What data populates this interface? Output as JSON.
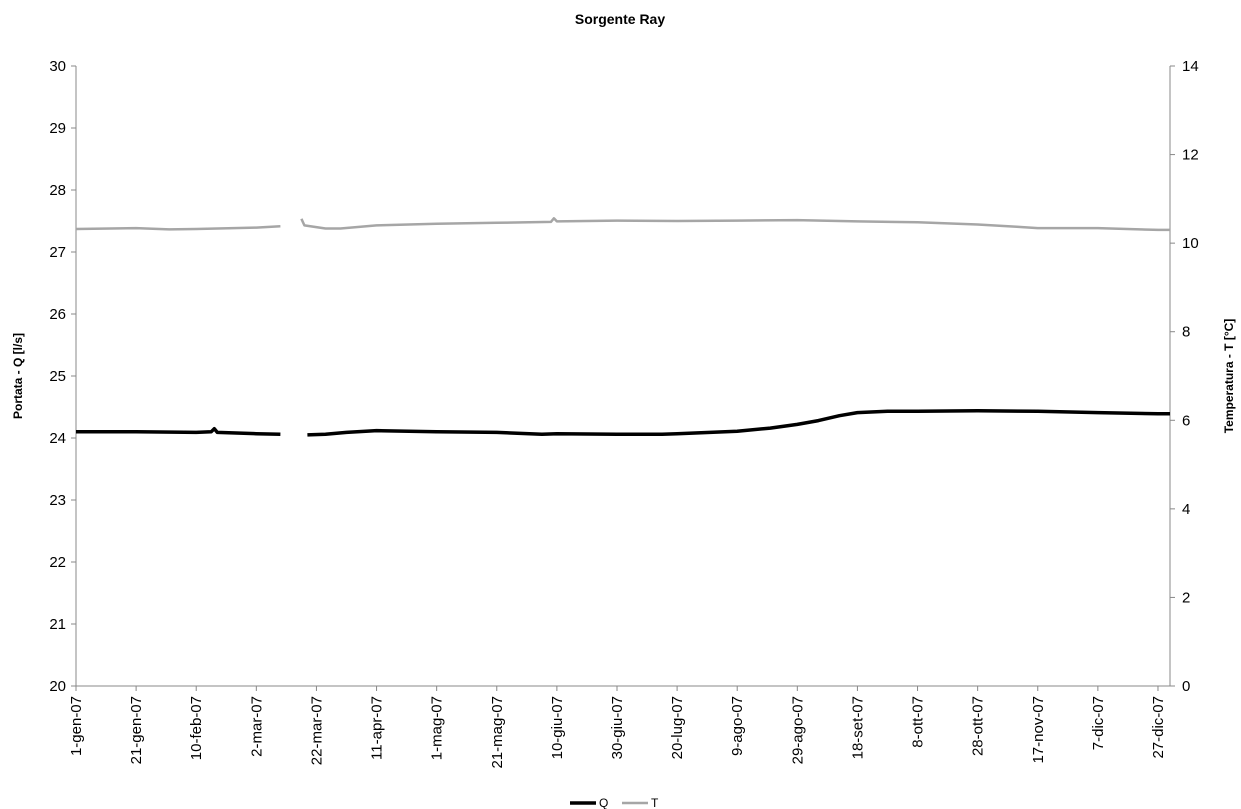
{
  "chart_data": {
    "type": "line",
    "title": "Sorgente Ray",
    "ylabel": "Portata - Q [l/s]",
    "y2label": "Temperatura - T [°C]",
    "xlabel": "",
    "ylim": [
      20,
      30
    ],
    "y2lim": [
      0,
      14
    ],
    "yticks": [
      "20",
      "21",
      "22",
      "23",
      "24",
      "25",
      "26",
      "27",
      "28",
      "29",
      "30"
    ],
    "y2ticks": [
      "0",
      "2",
      "4",
      "6",
      "8",
      "10",
      "12",
      "14"
    ],
    "xlim": [
      "2007-01-01",
      "2007-12-31"
    ],
    "xticks": [
      {
        "date": "2007-01-01",
        "label": "1-gen-07"
      },
      {
        "date": "2007-01-21",
        "label": "21-gen-07"
      },
      {
        "date": "2007-02-10",
        "label": "10-feb-07"
      },
      {
        "date": "2007-03-02",
        "label": "2-mar-07"
      },
      {
        "date": "2007-03-22",
        "label": "22-mar-07"
      },
      {
        "date": "2007-04-11",
        "label": "11-apr-07"
      },
      {
        "date": "2007-05-01",
        "label": "1-mag-07"
      },
      {
        "date": "2007-05-21",
        "label": "21-mag-07"
      },
      {
        "date": "2007-06-10",
        "label": "10-giu-07"
      },
      {
        "date": "2007-06-30",
        "label": "30-giu-07"
      },
      {
        "date": "2007-07-20",
        "label": "20-lug-07"
      },
      {
        "date": "2007-08-09",
        "label": "9-ago-07"
      },
      {
        "date": "2007-08-29",
        "label": "29-ago-07"
      },
      {
        "date": "2007-09-18",
        "label": "18-set-07"
      },
      {
        "date": "2007-10-08",
        "label": "8-ott-07"
      },
      {
        "date": "2007-10-28",
        "label": "28-ott-07"
      },
      {
        "date": "2007-11-17",
        "label": "17-nov-07"
      },
      {
        "date": "2007-12-07",
        "label": "7-dic-07"
      },
      {
        "date": "2007-12-27",
        "label": "27-dic-07"
      }
    ],
    "grid": false,
    "legend_position": "bottom",
    "series": [
      {
        "name": "Q",
        "axis": "left",
        "color": "#000000",
        "segments": [
          [
            {
              "x": "2007-01-01",
              "y": 24.1
            },
            {
              "x": "2007-01-21",
              "y": 24.1
            },
            {
              "x": "2007-02-10",
              "y": 24.09
            },
            {
              "x": "2007-02-15",
              "y": 24.1
            },
            {
              "x": "2007-02-16",
              "y": 24.15
            },
            {
              "x": "2007-02-17",
              "y": 24.09
            },
            {
              "x": "2007-03-02",
              "y": 24.07
            },
            {
              "x": "2007-03-10",
              "y": 24.06
            }
          ],
          [
            {
              "x": "2007-03-19",
              "y": 24.05
            },
            {
              "x": "2007-03-25",
              "y": 24.06
            },
            {
              "x": "2007-04-01",
              "y": 24.09
            },
            {
              "x": "2007-04-11",
              "y": 24.12
            },
            {
              "x": "2007-05-01",
              "y": 24.1
            },
            {
              "x": "2007-05-21",
              "y": 24.09
            },
            {
              "x": "2007-06-05",
              "y": 24.06
            },
            {
              "x": "2007-06-10",
              "y": 24.07
            },
            {
              "x": "2007-06-30",
              "y": 24.06
            },
            {
              "x": "2007-07-15",
              "y": 24.06
            },
            {
              "x": "2007-07-20",
              "y": 24.07
            },
            {
              "x": "2007-08-09",
              "y": 24.11
            },
            {
              "x": "2007-08-20",
              "y": 24.16
            },
            {
              "x": "2007-08-29",
              "y": 24.22
            },
            {
              "x": "2007-09-05",
              "y": 24.28
            },
            {
              "x": "2007-09-12",
              "y": 24.36
            },
            {
              "x": "2007-09-18",
              "y": 24.41
            },
            {
              "x": "2007-09-28",
              "y": 24.43
            },
            {
              "x": "2007-10-08",
              "y": 24.43
            },
            {
              "x": "2007-10-28",
              "y": 24.44
            },
            {
              "x": "2007-11-17",
              "y": 24.43
            },
            {
              "x": "2007-12-07",
              "y": 24.41
            },
            {
              "x": "2007-12-27",
              "y": 24.39
            },
            {
              "x": "2007-12-31",
              "y": 24.39
            }
          ]
        ]
      },
      {
        "name": "T",
        "axis": "right",
        "color": "#a6a6a6",
        "segments": [
          [
            {
              "x": "2007-01-01",
              "y": 10.32
            },
            {
              "x": "2007-01-21",
              "y": 10.34
            },
            {
              "x": "2007-02-01",
              "y": 10.31
            },
            {
              "x": "2007-02-10",
              "y": 10.32
            },
            {
              "x": "2007-03-02",
              "y": 10.35
            },
            {
              "x": "2007-03-10",
              "y": 10.38
            }
          ],
          [
            {
              "x": "2007-03-17",
              "y": 10.55
            },
            {
              "x": "2007-03-18",
              "y": 10.4
            },
            {
              "x": "2007-03-25",
              "y": 10.33
            },
            {
              "x": "2007-03-30",
              "y": 10.33
            },
            {
              "x": "2007-04-11",
              "y": 10.4
            },
            {
              "x": "2007-05-01",
              "y": 10.44
            },
            {
              "x": "2007-05-21",
              "y": 10.46
            },
            {
              "x": "2007-06-08",
              "y": 10.48
            },
            {
              "x": "2007-06-09",
              "y": 10.56
            },
            {
              "x": "2007-06-10",
              "y": 10.49
            },
            {
              "x": "2007-06-30",
              "y": 10.51
            },
            {
              "x": "2007-07-20",
              "y": 10.5
            },
            {
              "x": "2007-08-09",
              "y": 10.51
            },
            {
              "x": "2007-08-29",
              "y": 10.52
            },
            {
              "x": "2007-09-18",
              "y": 10.49
            },
            {
              "x": "2007-10-08",
              "y": 10.47
            },
            {
              "x": "2007-10-28",
              "y": 10.42
            },
            {
              "x": "2007-11-10",
              "y": 10.37
            },
            {
              "x": "2007-11-17",
              "y": 10.34
            },
            {
              "x": "2007-12-07",
              "y": 10.34
            },
            {
              "x": "2007-12-27",
              "y": 10.3
            },
            {
              "x": "2007-12-31",
              "y": 10.3
            }
          ]
        ]
      }
    ]
  }
}
